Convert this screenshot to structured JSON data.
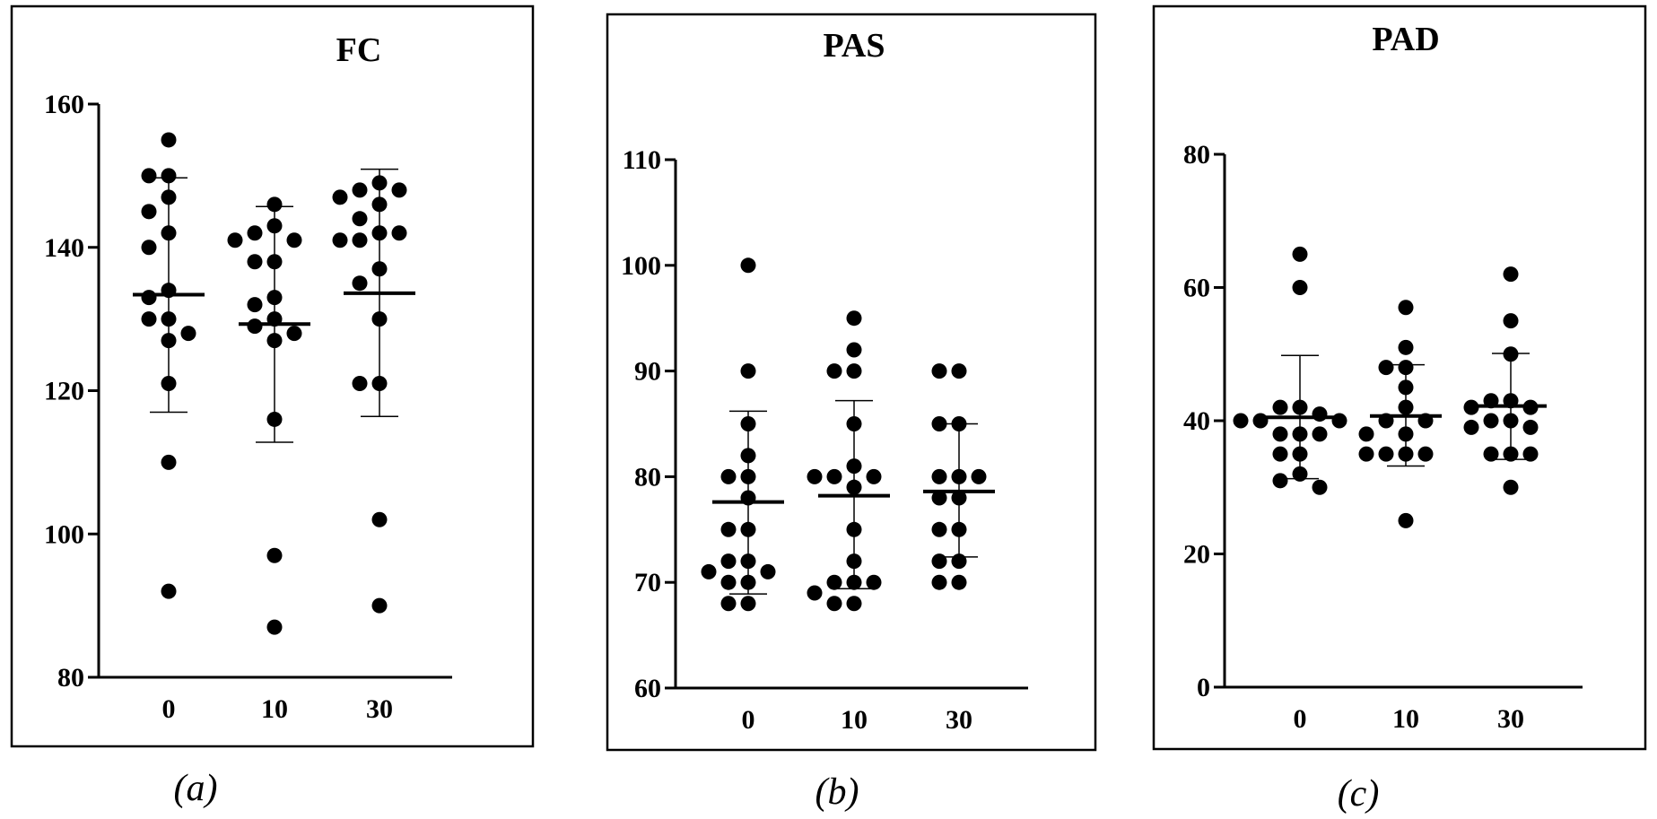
{
  "chart_data": [
    {
      "type": "scatter",
      "title": "FC",
      "caption": "(a)",
      "xlabel": "",
      "ylabel": "",
      "categories": [
        "0",
        "10",
        "30"
      ],
      "ylim": [
        80,
        160
      ],
      "yticks": [
        80,
        100,
        120,
        140,
        160
      ],
      "summary": [
        {
          "category": "0",
          "mean": 133.4,
          "sd_low": 117.0,
          "sd_high": 149.7
        },
        {
          "category": "10",
          "mean": 129.3,
          "sd_low": 112.8,
          "sd_high": 145.7
        },
        {
          "category": "30",
          "mean": 133.6,
          "sd_low": 116.4,
          "sd_high": 150.9
        }
      ],
      "points": [
        {
          "category": "0",
          "values": [
            155,
            150,
            150,
            147,
            145,
            142,
            140,
            134,
            133,
            130,
            130,
            128,
            127,
            121,
            110,
            92
          ]
        },
        {
          "category": "10",
          "values": [
            146,
            143,
            142,
            141,
            141,
            138,
            138,
            133,
            132,
            130,
            129,
            128,
            127,
            116,
            97,
            87
          ]
        },
        {
          "category": "30",
          "values": [
            149,
            148,
            148,
            147,
            146,
            144,
            142,
            142,
            141,
            141,
            137,
            135,
            130,
            121,
            121,
            102,
            90
          ]
        }
      ]
    },
    {
      "type": "scatter",
      "title": "PAS",
      "caption": "(b)",
      "xlabel": "",
      "ylabel": "",
      "categories": [
        "0",
        "10",
        "30"
      ],
      "ylim": [
        60,
        110
      ],
      "yticks": [
        60,
        70,
        80,
        90,
        100,
        110
      ],
      "summary": [
        {
          "category": "0",
          "mean": 77.6,
          "sd_low": 68.9,
          "sd_high": 86.2
        },
        {
          "category": "10",
          "mean": 78.2,
          "sd_low": 69.4,
          "sd_high": 87.2
        },
        {
          "category": "30",
          "mean": 78.6,
          "sd_low": 72.4,
          "sd_high": 85.0
        }
      ],
      "points": [
        {
          "category": "0",
          "values": [
            100,
            90,
            85,
            82,
            80,
            80,
            78,
            75,
            75,
            72,
            72,
            71,
            71,
            70,
            70,
            68,
            68
          ]
        },
        {
          "category": "10",
          "values": [
            95,
            92,
            90,
            90,
            85,
            81,
            80,
            80,
            80,
            79,
            75,
            72,
            70,
            70,
            70,
            69,
            68,
            68
          ]
        },
        {
          "category": "30",
          "values": [
            90,
            90,
            85,
            85,
            80,
            80,
            80,
            78,
            78,
            75,
            75,
            72,
            72,
            70,
            70
          ]
        }
      ]
    },
    {
      "type": "scatter",
      "title": "PAD",
      "caption": "(c)",
      "xlabel": "",
      "ylabel": "",
      "categories": [
        "0",
        "10",
        "30"
      ],
      "ylim": [
        0,
        80
      ],
      "yticks": [
        0,
        20,
        40,
        60,
        80
      ],
      "summary": [
        {
          "category": "0",
          "mean": 40.5,
          "sd_low": 31.3,
          "sd_high": 49.8
        },
        {
          "category": "10",
          "mean": 40.7,
          "sd_low": 33.2,
          "sd_high": 48.4
        },
        {
          "category": "30",
          "mean": 42.2,
          "sd_low": 34.2,
          "sd_high": 50.1
        }
      ],
      "points": [
        {
          "category": "0",
          "values": [
            65,
            60,
            42,
            42,
            41,
            40,
            40,
            40,
            38,
            38,
            38,
            35,
            35,
            32,
            31,
            30
          ]
        },
        {
          "category": "10",
          "values": [
            57,
            51,
            48,
            48,
            45,
            42,
            40,
            40,
            38,
            38,
            35,
            35,
            35,
            35,
            25
          ]
        },
        {
          "category": "30",
          "values": [
            62,
            55,
            50,
            43,
            43,
            42,
            42,
            40,
            40,
            39,
            39,
            35,
            35,
            35,
            30
          ]
        }
      ]
    }
  ]
}
